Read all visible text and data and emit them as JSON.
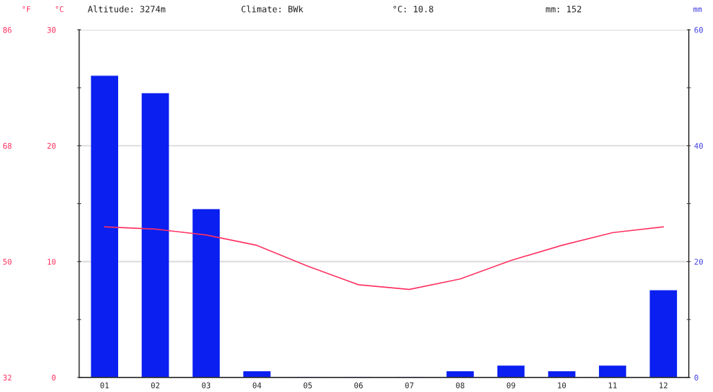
{
  "chart_data": {
    "type": "bar",
    "categories": [
      "01",
      "02",
      "03",
      "04",
      "05",
      "06",
      "07",
      "08",
      "09",
      "10",
      "11",
      "12"
    ],
    "series": [
      {
        "axis": "y2",
        "color": "#0a1ff0",
        "values": [
          52,
          49,
          29,
          1,
          0,
          0,
          0,
          1,
          2,
          1,
          2,
          15
        ]
      },
      {
        "type": "line",
        "color": "#ff3060",
        "values": [
          13.0,
          12.8,
          12.3,
          11.4,
          9.6,
          8.0,
          7.6,
          8.5,
          10.1,
          11.4,
          12.5,
          13.0
        ]
      }
    ],
    "ylabel": "°C",
    "y2label": "mm",
    "y3label": "°F",
    "ylim": [
      0,
      30
    ],
    "yticks": [
      0,
      {
        "value": 5,
        "label": null
      },
      10,
      {
        "value": 15,
        "label": null
      },
      20,
      {
        "value": 25,
        "label": null
      },
      30
    ],
    "y2lim": [
      0,
      60
    ],
    "y2ticks": [
      0,
      {
        "value": 10,
        "label": null
      },
      20,
      {
        "value": 30,
        "label": null
      },
      40,
      {
        "value": 50,
        "label": null
      },
      60
    ],
    "y3lim": [
      32,
      86
    ],
    "y3ticks": [
      32,
      50,
      68,
      86
    ],
    "grid": "y",
    "legend": false,
    "annotations": [
      "Altitude: 3274m",
      "Climate: BWk",
      "°C: 10.8",
      "mm: 152"
    ]
  }
}
